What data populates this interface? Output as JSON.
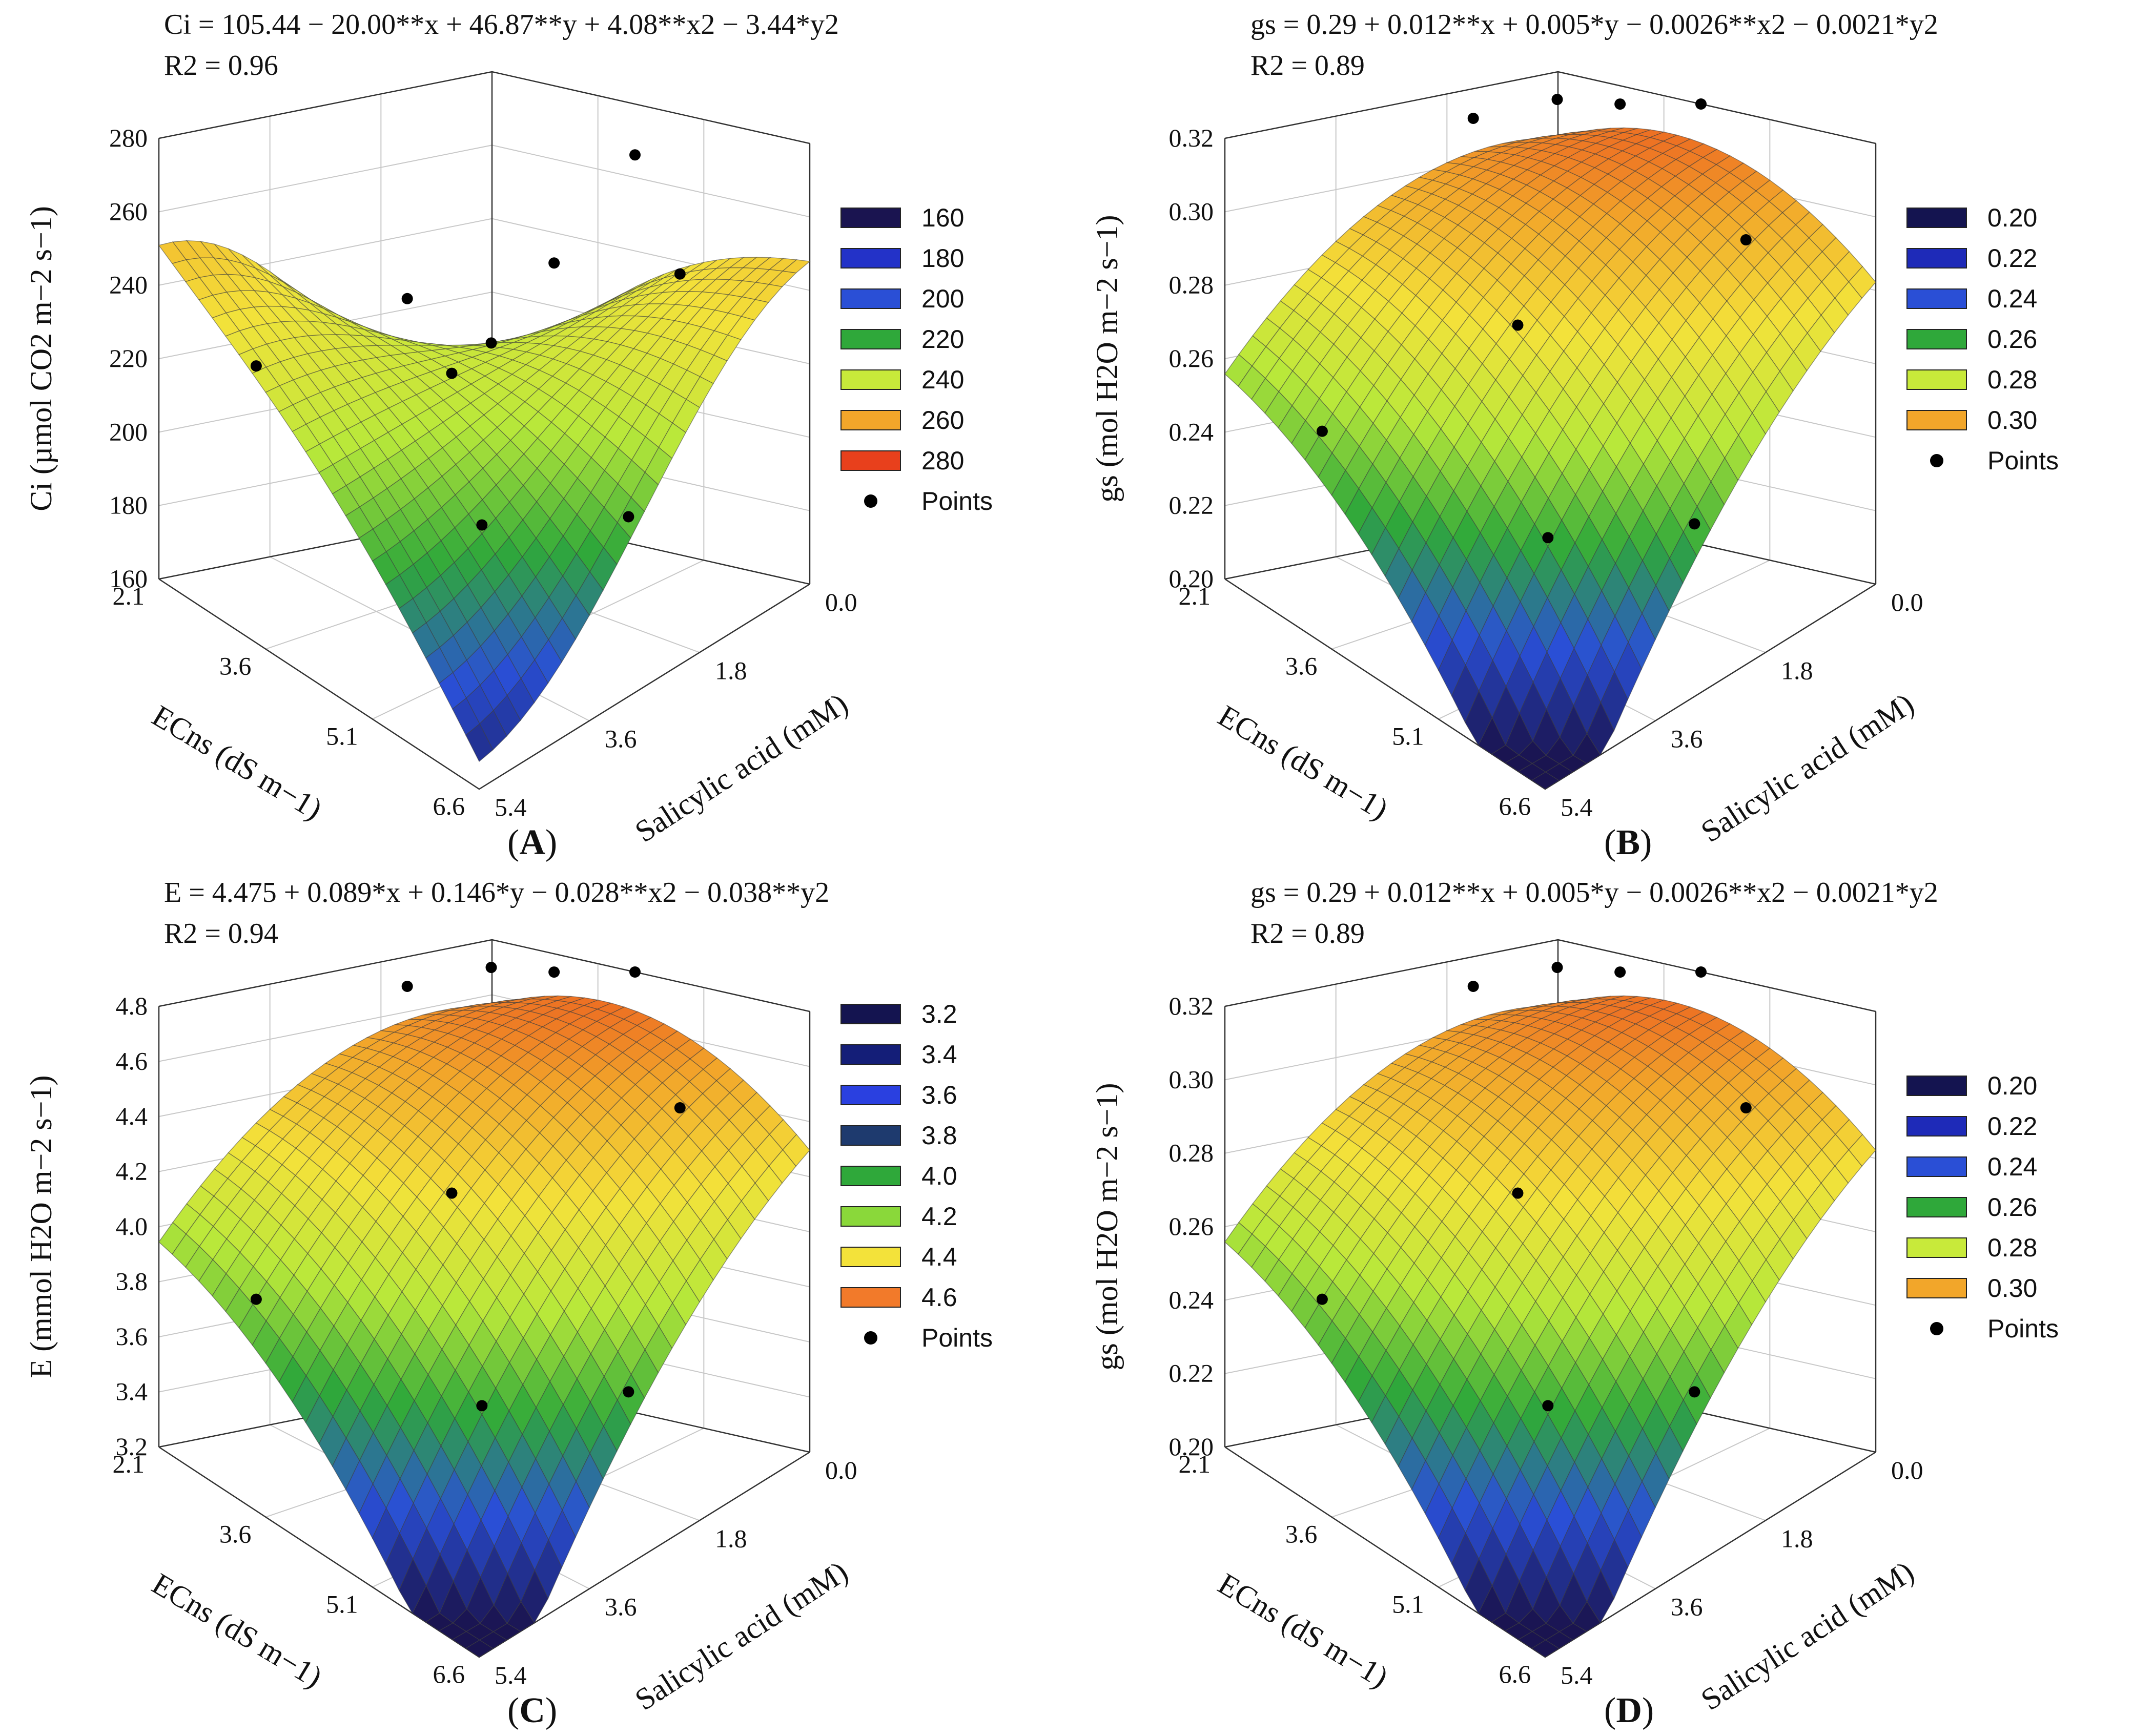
{
  "figure": {
    "palette": {
      "deep": "#1a1450",
      "blue": "#2a4fd6",
      "green": "#2fa83a",
      "lime": "#b8e83a",
      "yellow": "#f3e23a",
      "orange": "#f2a62a",
      "red": "#e83c1c"
    }
  },
  "chart_data": [
    {
      "type": "surface3d",
      "panel_label": "A",
      "equation": "Ci = 105.44 − 20.00**x + 46.87**y + 4.08**x2 − 3.44*y2",
      "r2": "R2 = 0.96",
      "zlabel": "Ci (µmol CO2 m−2 s−1)",
      "xlabel": "ECns (dS m−1)",
      "ylabel": "Salicylic acid (mM)",
      "x_ticks": [
        "2.1",
        "3.6",
        "5.1",
        "6.6"
      ],
      "y_ticks": [
        "0.0",
        "1.8",
        "3.6",
        "5.4"
      ],
      "z_ticks": [
        "160",
        "180",
        "200",
        "220",
        "240",
        "260",
        "280"
      ],
      "zlim": [
        160,
        280
      ],
      "legend": [
        {
          "label": "160",
          "color": "#1a1450"
        },
        {
          "label": "180",
          "color": "#2332c8"
        },
        {
          "label": "200",
          "color": "#2a4fd6"
        },
        {
          "label": "220",
          "color": "#2fa83a"
        },
        {
          "label": "240",
          "color": "#c8ea3a"
        },
        {
          "label": "260",
          "color": "#f2a62a"
        },
        {
          "label": "280",
          "color": "#e8401c"
        }
      ],
      "points_label": "Points",
      "surface": {
        "shape": "saddle"
      }
    },
    {
      "type": "surface3d",
      "panel_label": "B",
      "equation": "gs = 0.29 + 0.012**x + 0.005*y − 0.0026**x2 − 0.0021*y2",
      "r2": "R2 = 0.89",
      "zlabel": "gs (mol H2O m−2 s−1)",
      "xlabel": "ECns (dS m−1)",
      "ylabel": "Salicylic acid (mM)",
      "x_ticks": [
        "2.1",
        "3.6",
        "5.1",
        "6.6"
      ],
      "y_ticks": [
        "0.0",
        "1.8",
        "3.6",
        "5.4"
      ],
      "z_ticks": [
        "0.20",
        "0.22",
        "0.24",
        "0.26",
        "0.28",
        "0.30",
        "0.32"
      ],
      "zlim": [
        0.2,
        0.32
      ],
      "legend": [
        {
          "label": "0.20",
          "color": "#141450"
        },
        {
          "label": "0.22",
          "color": "#1e2ab8"
        },
        {
          "label": "0.24",
          "color": "#2a4fd6"
        },
        {
          "label": "0.26",
          "color": "#2fa83a"
        },
        {
          "label": "0.28",
          "color": "#c8ea3a"
        },
        {
          "label": "0.30",
          "color": "#f2a62a"
        }
      ],
      "points_label": "Points",
      "surface": {
        "shape": "dome"
      }
    },
    {
      "type": "surface3d",
      "panel_label": "C",
      "equation": "E = 4.475 + 0.089*x + 0.146*y − 0.028**x2 − 0.038**y2",
      "r2": "R2 = 0.94",
      "zlabel": "E (mmol H2O m−2 s−1)",
      "xlabel": "ECns (dS m−1)",
      "ylabel": "Salicylic acid (mM)",
      "x_ticks": [
        "2.1",
        "3.6",
        "5.1",
        "6.6"
      ],
      "y_ticks": [
        "0.0",
        "1.8",
        "3.6",
        "5.4"
      ],
      "z_ticks": [
        "3.2",
        "3.4",
        "3.6",
        "3.8",
        "4.0",
        "4.2",
        "4.4",
        "4.6",
        "4.8"
      ],
      "zlim": [
        3.2,
        4.8
      ],
      "legend": [
        {
          "label": "3.2",
          "color": "#141450"
        },
        {
          "label": "3.4",
          "color": "#141e78"
        },
        {
          "label": "3.6",
          "color": "#2a40e0"
        },
        {
          "label": "3.8",
          "color": "#1e3a6e"
        },
        {
          "label": "4.0",
          "color": "#2fa83a"
        },
        {
          "label": "4.2",
          "color": "#8ad83a"
        },
        {
          "label": "4.4",
          "color": "#f3e23a"
        },
        {
          "label": "4.6",
          "color": "#f27a2a"
        }
      ],
      "points_label": "Points",
      "surface": {
        "shape": "dome"
      }
    },
    {
      "type": "surface3d",
      "panel_label": "D",
      "equation": "gs = 0.29 + 0.012**x + 0.005*y − 0.0026**x2 − 0.0021*y2",
      "r2": "R2 = 0.89",
      "zlabel": "gs (mol H2O m−2 s−1)",
      "xlabel": "ECns (dS m−1)",
      "ylabel": "Salicylic acid (mM)",
      "x_ticks": [
        "2.1",
        "3.6",
        "5.1",
        "6.6"
      ],
      "y_ticks": [
        "0.0",
        "1.8",
        "3.6",
        "5.4"
      ],
      "z_ticks": [
        "0.20",
        "0.22",
        "0.24",
        "0.26",
        "0.28",
        "0.30",
        "0.32"
      ],
      "zlim": [
        0.2,
        0.32
      ],
      "legend": [
        {
          "label": "0.20",
          "color": "#141450"
        },
        {
          "label": "0.22",
          "color": "#1e2ab8"
        },
        {
          "label": "0.24",
          "color": "#2a4fd6"
        },
        {
          "label": "0.26",
          "color": "#2fa83a"
        },
        {
          "label": "0.28",
          "color": "#c8ea3a"
        },
        {
          "label": "0.30",
          "color": "#f2a62a"
        }
      ],
      "points_label": "Points",
      "surface": {
        "shape": "dome"
      }
    }
  ]
}
